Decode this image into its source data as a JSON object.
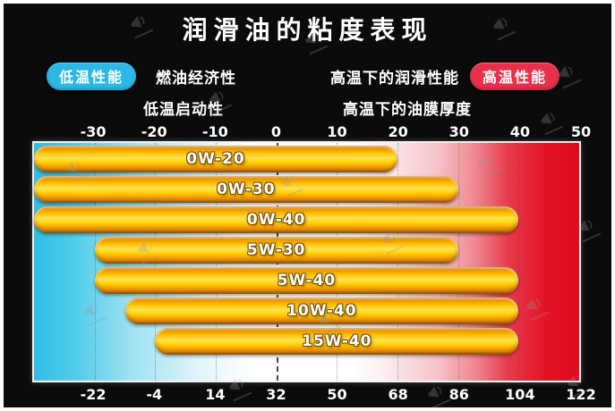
{
  "title": "润滑油的粘度表现",
  "legend": {
    "low_badge": "低温性能",
    "high_badge": "高温性能",
    "left_row1": "燃油经济性",
    "left_row2": "低温启动性",
    "right_row1": "高温下的润滑性能",
    "right_row2": "高温下的油膜厚度",
    "low_badge_color": "#2cb8e6",
    "high_badge_color": "#e7304a"
  },
  "chart_data": {
    "type": "bar",
    "orientation": "horizontal-range",
    "title": "润滑油的粘度表现",
    "xlim_celsius": [
      -40,
      50
    ],
    "grid": true,
    "top_axis": {
      "unit": "celsius",
      "ticks": [
        -30,
        -20,
        -10,
        0,
        10,
        20,
        30,
        40,
        50
      ]
    },
    "bottom_axis": {
      "unit": "fahrenheit",
      "ticks": [
        -22,
        -4,
        14,
        32,
        50,
        68,
        86,
        104,
        122
      ]
    },
    "bars": [
      {
        "label": "0W-20",
        "min_c": -40,
        "max_c": 20
      },
      {
        "label": "0W-30",
        "min_c": -40,
        "max_c": 30
      },
      {
        "label": "0W-40",
        "min_c": -40,
        "max_c": 40
      },
      {
        "label": "5W-30",
        "min_c": -30,
        "max_c": 30
      },
      {
        "label": "5W-40",
        "min_c": -30,
        "max_c": 40
      },
      {
        "label": "10W-40",
        "min_c": -25,
        "max_c": 40
      },
      {
        "label": "15W-40",
        "min_c": -20,
        "max_c": 40
      }
    ],
    "colors": {
      "cold_end": "#2fbfe5",
      "mid": "#ffffff",
      "hot_end": "#e10c1e",
      "bar_main": "#ffc400",
      "bar_highlight": "#ffe158",
      "bar_edge": "#b56a00",
      "background": "#0b0b0c"
    }
  }
}
